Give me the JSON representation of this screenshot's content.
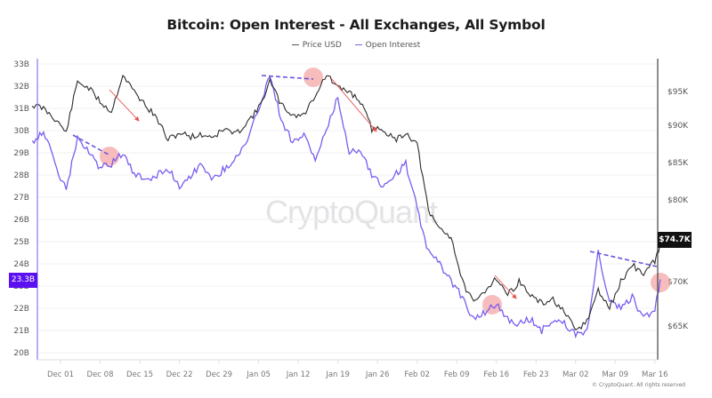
{
  "header": {
    "title": "Bitcoin: Open Interest - All Exchanges, All Symbol"
  },
  "legend": [
    {
      "label": "Price USD",
      "color": "#555555"
    },
    {
      "label": "Open Interest",
      "color": "#7b61e8"
    }
  ],
  "watermark": "CryptoQuant",
  "copyright": "© CryptoQuant. All rights reserved",
  "current_values": {
    "open_interest": "23.3B",
    "price": "$74.7K"
  },
  "colors": {
    "price_line": "#2b2b2b",
    "oi_line": "#7b5cf0",
    "oi_badge": "#5b10f0",
    "price_badge": "#111111",
    "annotation_circle": "#f4a6a6",
    "annotation_arrow": "#e85050",
    "annotation_dash": "#6a55d8"
  },
  "chart_data": {
    "type": "line",
    "title": "Bitcoin: Open Interest - All Exchanges, All Symbol",
    "xlabel": "",
    "ylabel_left": "Open Interest (USD)",
    "ylabel_right": "Price USD",
    "x_tick_labels": [
      "Dec 01",
      "Dec 08",
      "Dec 15",
      "Dec 22",
      "Dec 29",
      "Jan 05",
      "Jan 12",
      "Jan 19",
      "Jan 26",
      "Feb 02",
      "Feb 09",
      "Feb 16",
      "Feb 23",
      "Mar 02",
      "Mar 09",
      "Mar 16"
    ],
    "y_left_tick_labels": [
      "33B",
      "32B",
      "31B",
      "30B",
      "29B",
      "28B",
      "27B",
      "26B",
      "25B",
      "24B",
      "23B",
      "22B",
      "21B",
      "20B"
    ],
    "y_left_range": [
      20,
      33
    ],
    "y_right_tick_labels": [
      "$95K",
      "$90K",
      "$85K",
      "$80K",
      "$70K",
      "$65K"
    ],
    "y_right_range": [
      62000,
      98000
    ],
    "grid": true,
    "legend_position": "top",
    "x": [
      "Nov 26",
      "Nov 28",
      "Nov 30",
      "Dec 02",
      "Dec 04",
      "Dec 06",
      "Dec 08",
      "Dec 10",
      "Dec 12",
      "Dec 14",
      "Dec 16",
      "Dec 18",
      "Dec 20",
      "Dec 22",
      "Dec 24",
      "Dec 26",
      "Dec 28",
      "Dec 30",
      "Jan 01",
      "Jan 03",
      "Jan 05",
      "Jan 07",
      "Jan 09",
      "Jan 11",
      "Jan 13",
      "Jan 15",
      "Jan 17",
      "Jan 19",
      "Jan 21",
      "Jan 23",
      "Jan 25",
      "Jan 27",
      "Jan 29",
      "Jan 31",
      "Feb 02",
      "Feb 04",
      "Feb 06",
      "Feb 08",
      "Feb 10",
      "Feb 12",
      "Feb 14",
      "Feb 16",
      "Feb 18",
      "Feb 20",
      "Feb 22",
      "Feb 24",
      "Feb 26",
      "Feb 28",
      "Mar 02",
      "Mar 04",
      "Mar 06",
      "Mar 08",
      "Mar 10",
      "Mar 12",
      "Mar 14",
      "Mar 16",
      "Mar 17"
    ],
    "series": [
      {
        "name": "Price USD",
        "axis": "right",
        "values": [
          93000,
          92500,
          91000,
          89000,
          96500,
          95500,
          93500,
          92000,
          97500,
          95000,
          93000,
          91000,
          88000,
          89000,
          88500,
          88700,
          88500,
          89500,
          88800,
          90500,
          92500,
          96500,
          93000,
          91500,
          91500,
          94500,
          97500,
          95500,
          95000,
          93500,
          89500,
          89500,
          88000,
          89000,
          87500,
          78500,
          76500,
          75500,
          70000,
          67500,
          69000,
          70500,
          68500,
          70000,
          68500,
          67500,
          68000,
          66500,
          64500,
          65500,
          69000,
          67000,
          70000,
          72000,
          71000,
          72500,
          74700
        ]
      },
      {
        "name": "Open Interest",
        "axis": "left",
        "values": [
          29.5,
          30.0,
          28.5,
          27.3,
          29.7,
          29.0,
          28.3,
          28.5,
          29.0,
          28.0,
          27.8,
          28.0,
          28.3,
          27.5,
          28.0,
          28.5,
          27.8,
          28.3,
          28.8,
          29.5,
          31.0,
          32.5,
          30.5,
          29.5,
          29.8,
          28.7,
          30.0,
          31.5,
          29.0,
          29.2,
          28.0,
          27.5,
          28.0,
          28.5,
          26.5,
          24.5,
          24.0,
          23.2,
          22.5,
          21.5,
          21.8,
          22.2,
          21.5,
          21.3,
          21.5,
          21.0,
          21.5,
          21.3,
          20.8,
          21.0,
          24.5,
          22.3,
          22.0,
          22.5,
          21.5,
          22.0,
          23.3
        ]
      }
    ],
    "annotations": [
      {
        "type": "dashed_line",
        "series": "Open Interest",
        "from": "Dec 04",
        "to": "Dec 11",
        "note": "declining OI highs"
      },
      {
        "type": "circle",
        "at": "Dec 11"
      },
      {
        "type": "arrow",
        "series": "Price USD",
        "from": "Dec 11",
        "to": "Dec 16",
        "note": "declining price"
      },
      {
        "type": "dashed_line",
        "series": "Open Interest",
        "from": "Jan 05",
        "to": "Jan 15"
      },
      {
        "type": "circle",
        "at": "Jan 15"
      },
      {
        "type": "arrow",
        "series": "Price USD",
        "from": "Jan 17",
        "to": "Jan 28"
      },
      {
        "type": "circle",
        "at": "Feb 16"
      },
      {
        "type": "arrow",
        "series": "Price USD",
        "from": "Feb 16",
        "to": "Feb 20"
      },
      {
        "type": "dashed_line",
        "series": "Open Interest",
        "from": "Mar 03",
        "to": "Mar 16"
      },
      {
        "type": "circle",
        "at": "Mar 16"
      }
    ]
  }
}
